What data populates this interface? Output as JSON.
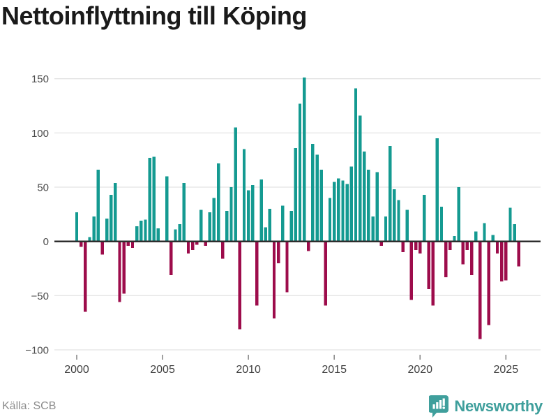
{
  "title": "Nettoinflyttning till Köping",
  "source": "Källa: SCB",
  "brand": {
    "name": "Newsworthy",
    "color": "#3f9f9c"
  },
  "colors": {
    "positive_bar": "#149A91",
    "negative_bar": "#9D0C4B",
    "grid": "#e4e4e4",
    "zero_line": "#2e2e2e",
    "tick": "#8a8a8a",
    "y_label": "#4d4d4d",
    "x_label": "#404040"
  },
  "chart_data": {
    "type": "bar",
    "title": "Nettoinflyttning till Köping",
    "xlabel": "",
    "ylabel": "",
    "frequency": "quarterly",
    "start_year": 2000,
    "ylim": [
      -110,
      168
    ],
    "grid": "horizontal",
    "y_ticks": [
      150,
      100,
      50,
      0,
      -50,
      -100
    ],
    "x_tick_years": [
      2000,
      2005,
      2010,
      2015,
      2020,
      2025
    ],
    "values": [
      27,
      -5,
      -65,
      4,
      23,
      66,
      -12,
      21,
      43,
      54,
      -56,
      -48,
      -4,
      -6,
      14,
      19,
      20,
      77,
      78,
      12,
      0,
      60,
      -31,
      11,
      16,
      54,
      -11,
      -8,
      -3,
      29,
      -4,
      27,
      40,
      72,
      -16,
      28,
      50,
      105,
      -81,
      85,
      47,
      52,
      -59,
      57,
      13,
      30,
      -71,
      -20,
      33,
      -47,
      28,
      86,
      127,
      151,
      -9,
      90,
      80,
      66,
      -59,
      40,
      55,
      58,
      56,
      53,
      69,
      141,
      116,
      83,
      66,
      23,
      64,
      -4,
      23,
      88,
      48,
      38,
      -10,
      29,
      -54,
      -8,
      -11,
      43,
      -44,
      -59,
      95,
      32,
      -33,
      -8,
      5,
      50,
      -21,
      -8,
      -31,
      9,
      -90,
      17,
      -77,
      6,
      -11,
      -37,
      -36,
      31,
      16,
      -23
    ]
  }
}
